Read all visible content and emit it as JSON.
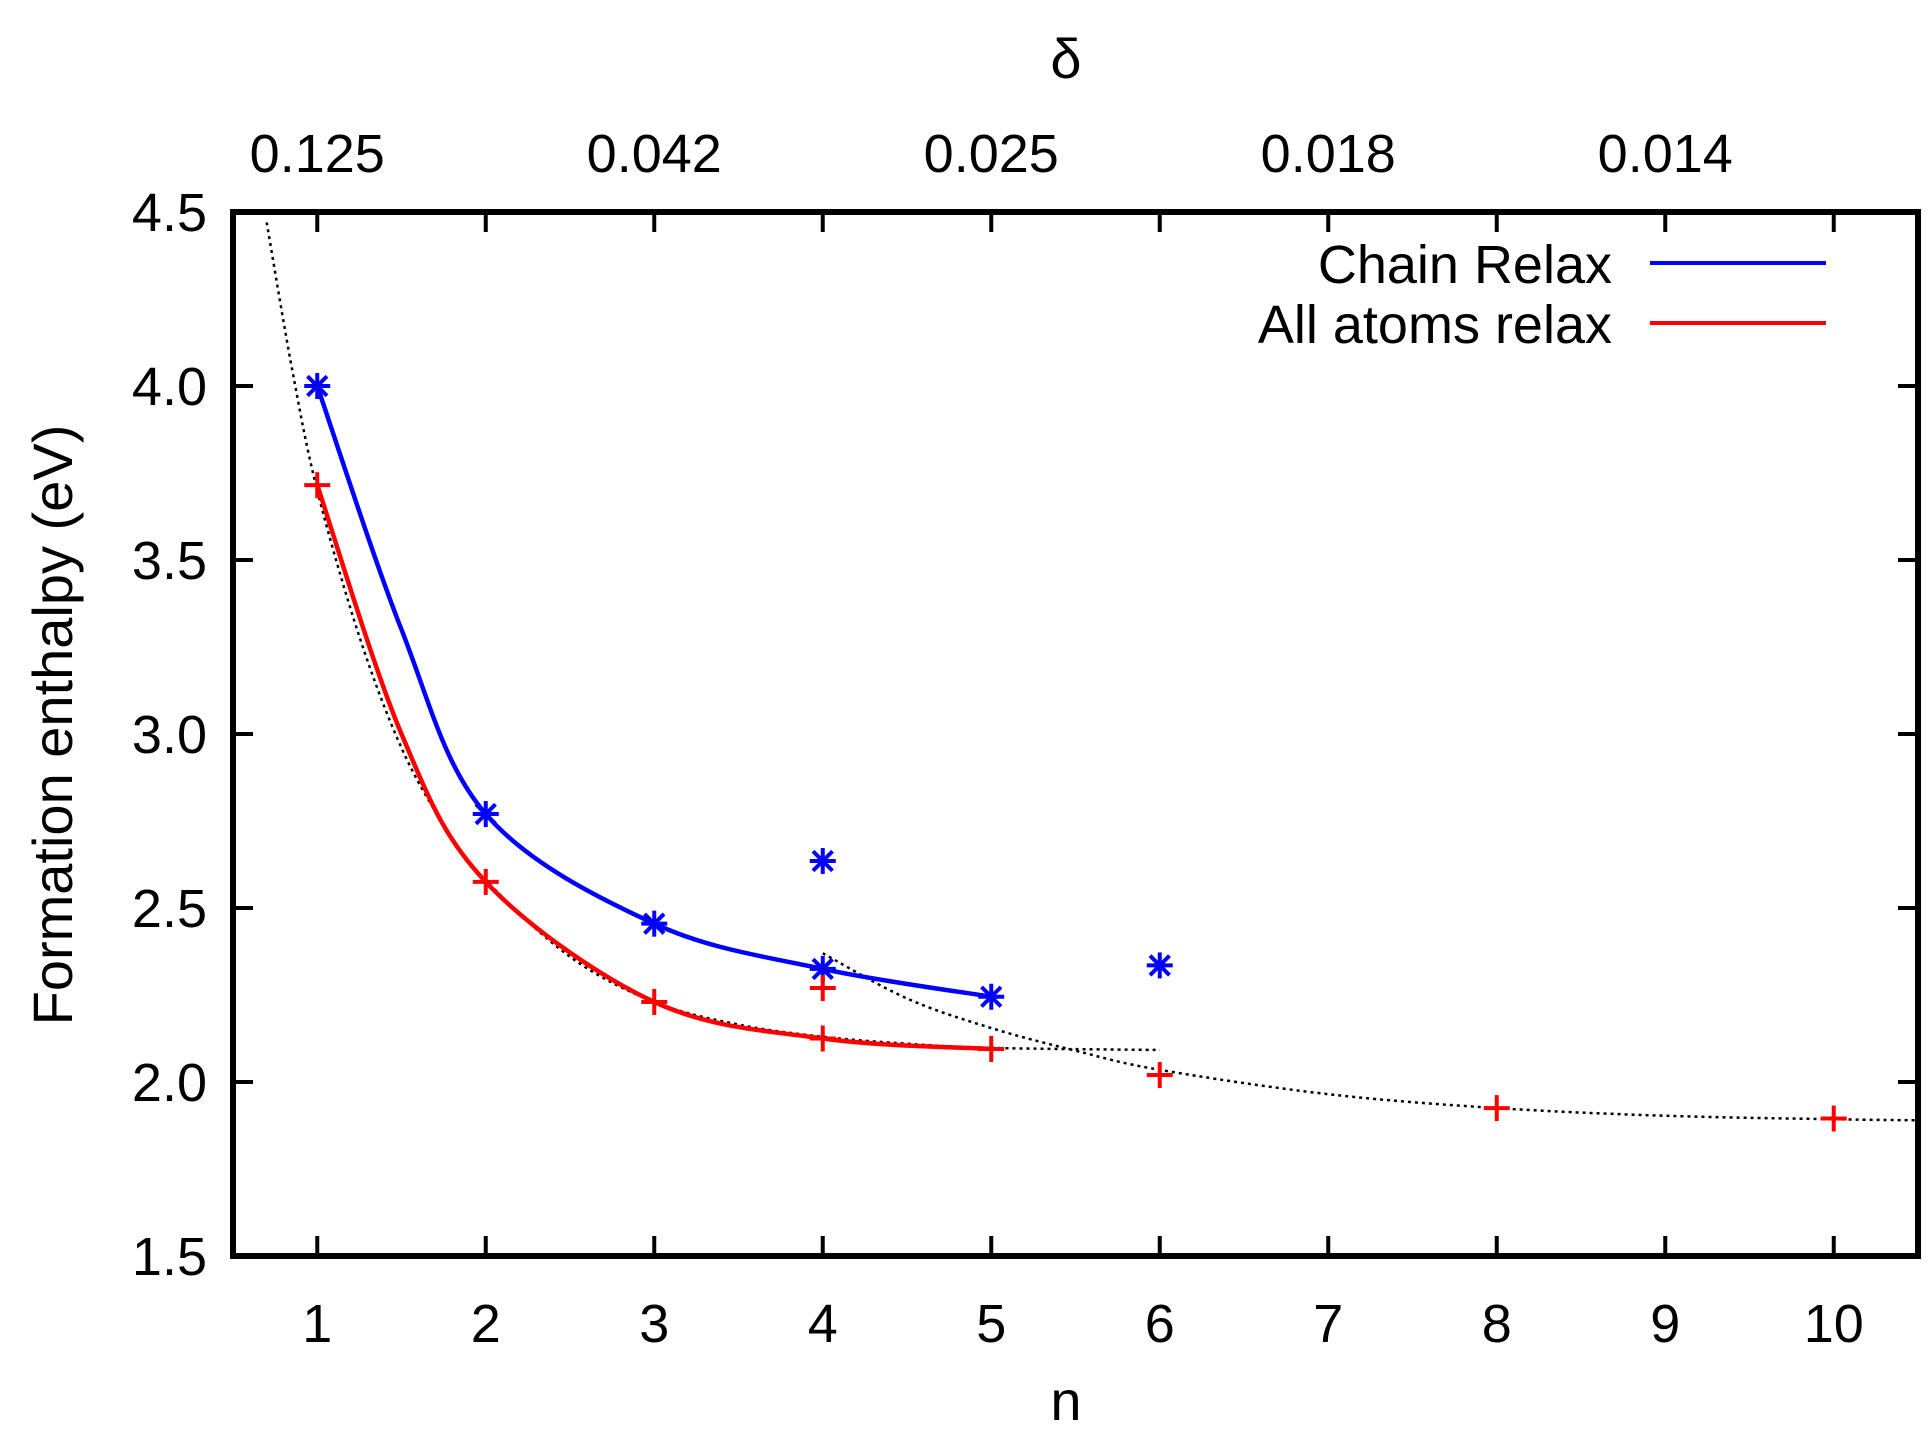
{
  "chart_data": {
    "type": "scatter",
    "title": "",
    "xlabel": "n",
    "ylabel": "Formation enthalpy (eV)",
    "x2label": "δ",
    "xlim": [
      0.5,
      10.5
    ],
    "ylim": [
      1.5,
      4.5
    ],
    "xticks": [
      1,
      2,
      3,
      4,
      5,
      6,
      7,
      8,
      9,
      10
    ],
    "xtick_labels": [
      "1",
      "2",
      "3",
      "4",
      "5",
      "6",
      "7",
      "8",
      "9",
      "10"
    ],
    "yticks": [
      1.5,
      2.0,
      2.5,
      3.0,
      3.5,
      4.0,
      4.5
    ],
    "ytick_labels": [
      "1.5",
      "2.0",
      "2.5",
      "3.0",
      "3.5",
      "4.0",
      "4.5"
    ],
    "x2ticks": [
      1,
      3,
      5,
      7,
      9
    ],
    "x2tick_labels": [
      "0.125",
      "0.042",
      "0.025",
      "0.018",
      "0.014"
    ],
    "legend_position": "top-right",
    "series": [
      {
        "name": "Chain Relax",
        "color": "#0000ff",
        "marker": "asterisk",
        "points": [
          [
            1,
            4.0
          ],
          [
            2,
            2.77
          ],
          [
            3,
            2.455
          ],
          [
            4,
            2.325
          ],
          [
            5,
            2.245
          ],
          [
            4,
            2.635
          ],
          [
            6,
            2.335
          ]
        ],
        "curve": [
          [
            1,
            4.0
          ],
          [
            1.5,
            3.3
          ],
          [
            2,
            2.77
          ],
          [
            3,
            2.455
          ],
          [
            4,
            2.325
          ],
          [
            5,
            2.245
          ]
        ]
      },
      {
        "name": "All atoms relax",
        "color": "#ff0000",
        "marker": "plus",
        "points": [
          [
            1,
            3.715
          ],
          [
            2,
            2.575
          ],
          [
            3,
            2.23
          ],
          [
            4,
            2.125
          ],
          [
            5,
            2.095
          ],
          [
            4,
            2.27
          ],
          [
            6,
            2.02
          ],
          [
            8,
            1.925
          ],
          [
            10,
            1.895
          ]
        ],
        "curve": [
          [
            1,
            3.715
          ],
          [
            1.5,
            3.0
          ],
          [
            2,
            2.575
          ],
          [
            3,
            2.23
          ],
          [
            4,
            2.125
          ],
          [
            5,
            2.095
          ]
        ]
      }
    ],
    "fits": [
      {
        "name": "fit 1",
        "color": "#000000",
        "style": "dotted",
        "points": [
          [
            0.7,
            4.47
          ],
          [
            0.85,
            4.05
          ],
          [
            1.0,
            3.7
          ],
          [
            1.25,
            3.28
          ],
          [
            1.5,
            2.96
          ],
          [
            1.75,
            2.74
          ],
          [
            2.0,
            2.58
          ],
          [
            2.5,
            2.36
          ],
          [
            3.0,
            2.23
          ],
          [
            3.5,
            2.165
          ],
          [
            4.0,
            2.13
          ],
          [
            4.5,
            2.11
          ],
          [
            5.0,
            2.098
          ],
          [
            6.0,
            2.092
          ]
        ]
      },
      {
        "name": "fit 2",
        "color": "#000000",
        "style": "dotted",
        "points": [
          [
            4.0,
            2.37
          ],
          [
            4.5,
            2.24
          ],
          [
            5.0,
            2.155
          ],
          [
            5.5,
            2.09
          ],
          [
            6.0,
            2.035
          ],
          [
            7.0,
            1.965
          ],
          [
            8.0,
            1.925
          ],
          [
            9.0,
            1.903
          ],
          [
            10.0,
            1.893
          ],
          [
            10.5,
            1.89
          ]
        ]
      }
    ]
  }
}
